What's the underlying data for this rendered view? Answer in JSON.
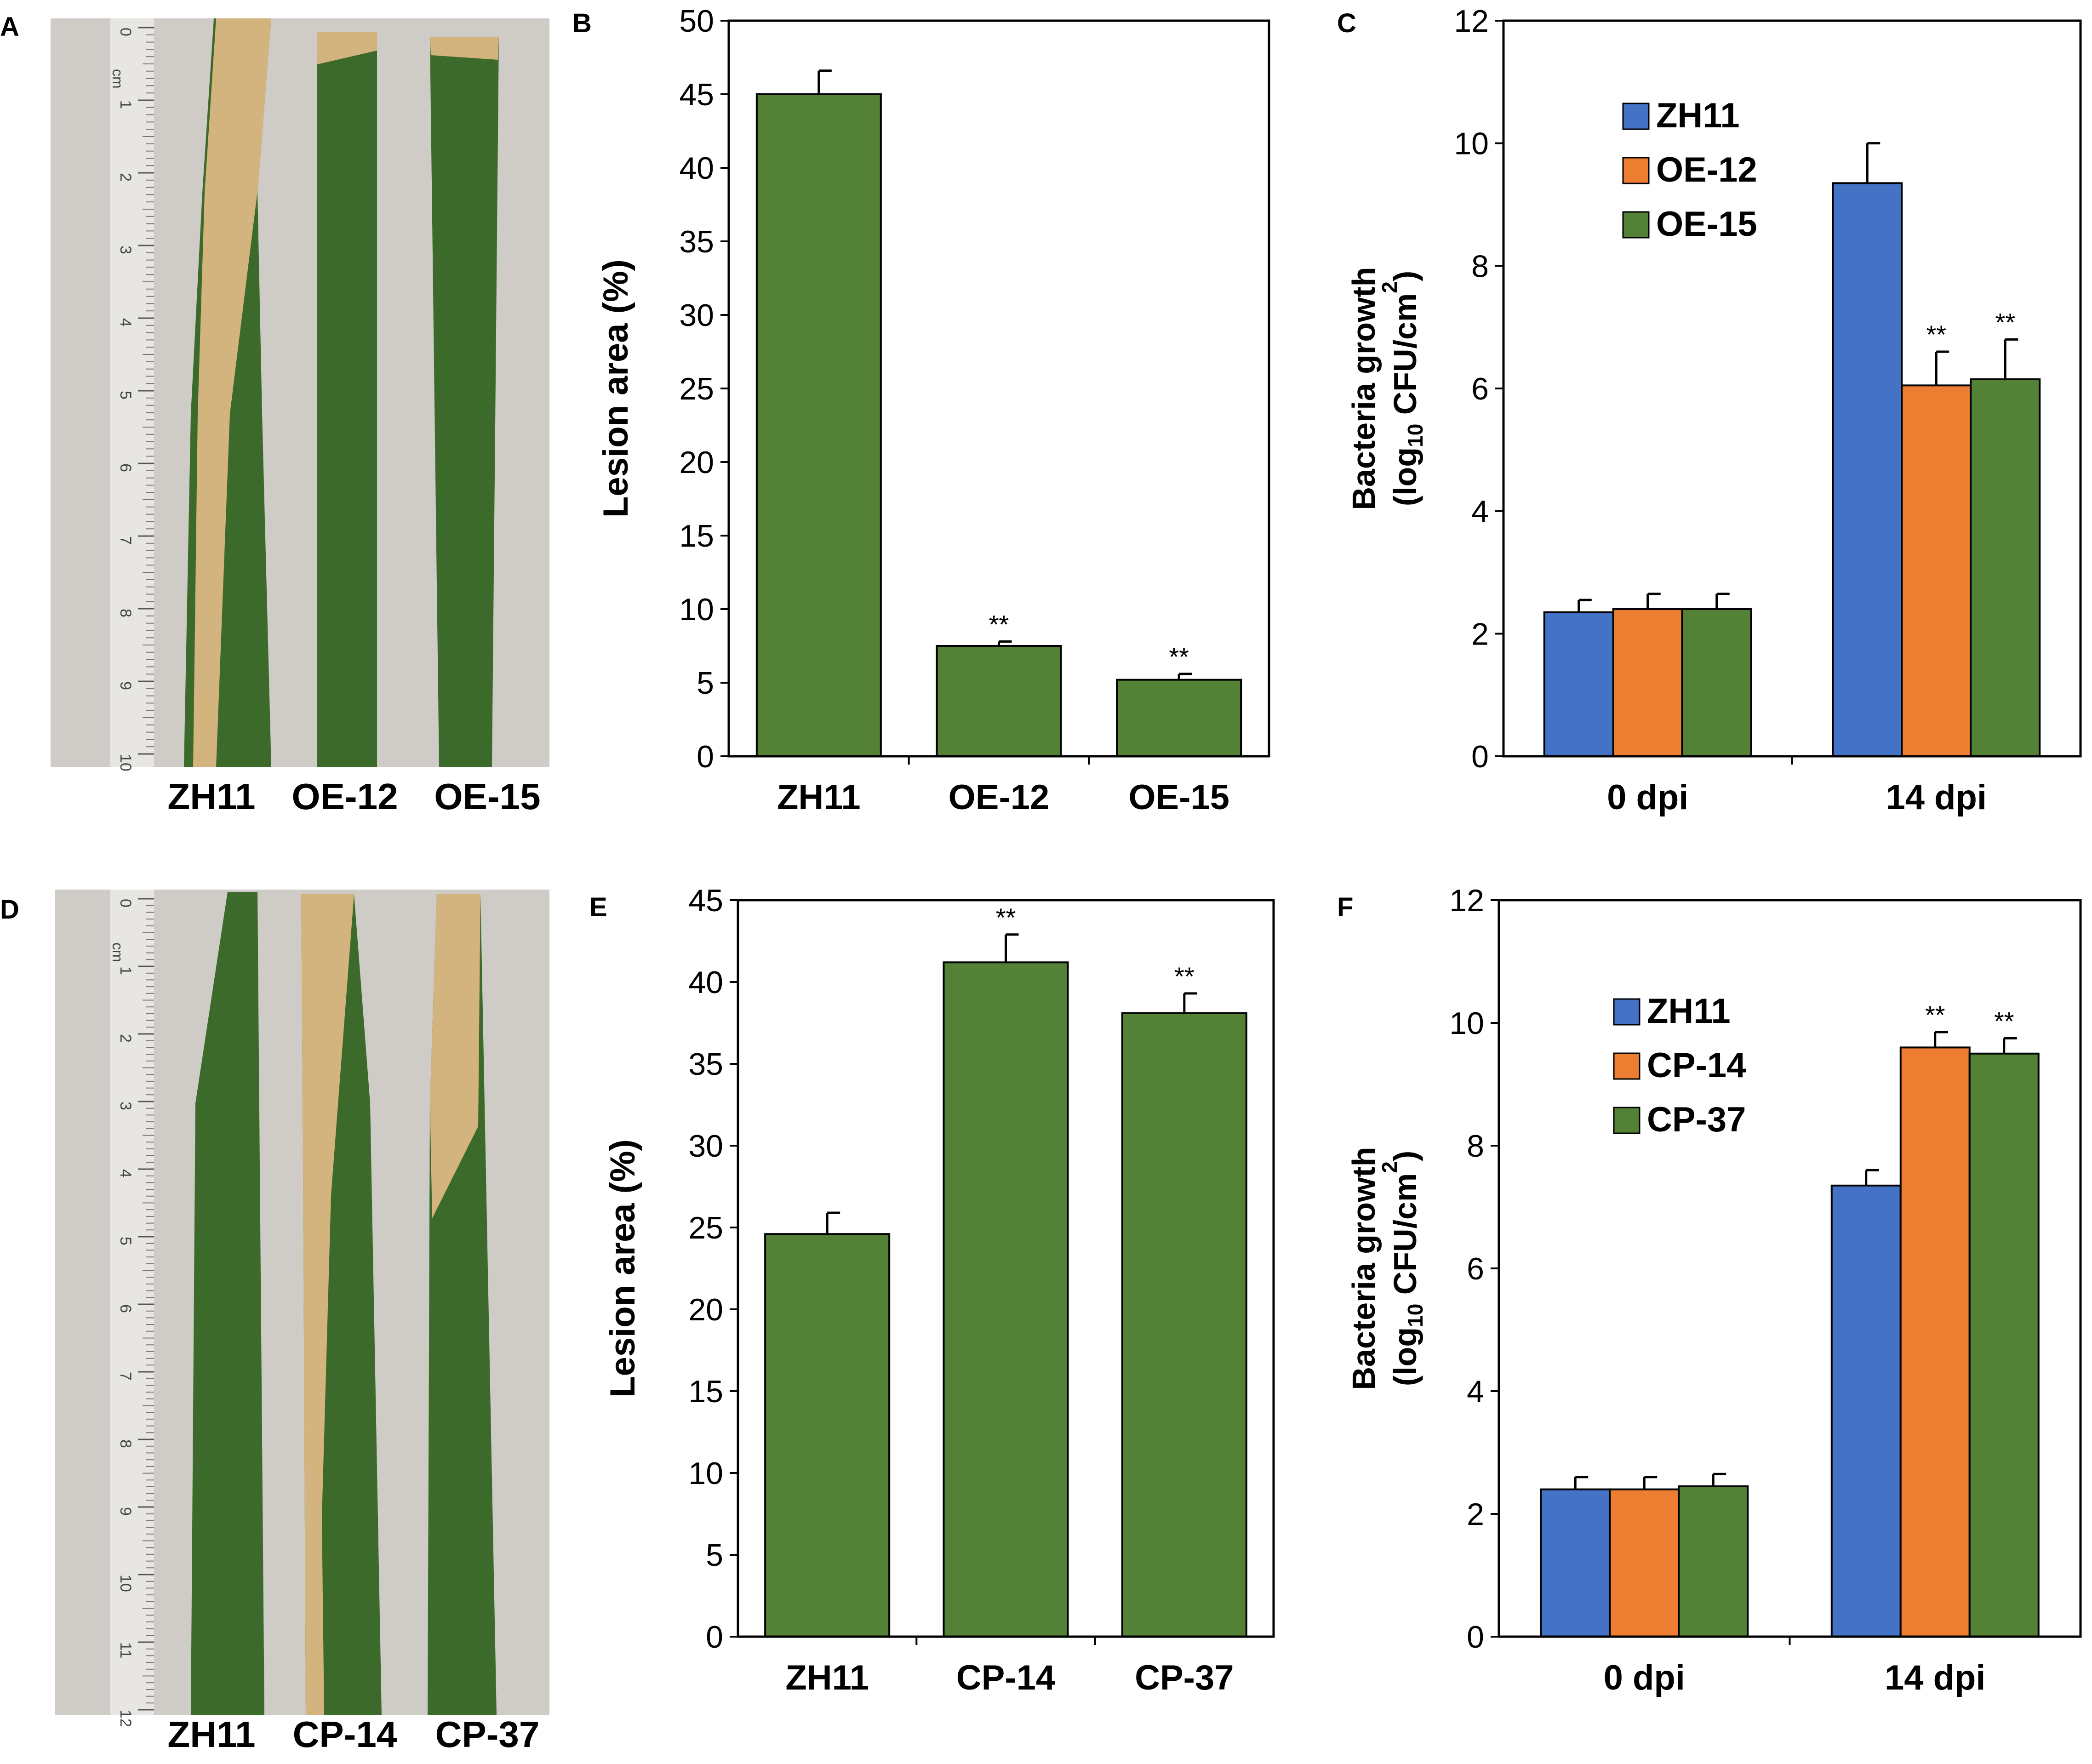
{
  "colors": {
    "green_bar": "#538135",
    "blue_bar": "#4472C4",
    "orange_bar": "#ED7D31",
    "bar_edge": "#000000",
    "photo_background": "#CFCBC7",
    "ruler": "#E8E6E2",
    "leaf_green": "#3B6A2A",
    "lesion_tan": "#D3B37E"
  },
  "panel_labels": [
    "A",
    "B",
    "C",
    "D",
    "E",
    "F"
  ],
  "photos": [
    {
      "label": "A",
      "ruler_unit": "cm",
      "ruler_ticks": [
        "0",
        "1",
        "2",
        "3",
        "4",
        "5",
        "6",
        "7",
        "8",
        "9",
        "10"
      ],
      "leaf_labels": [
        "ZH11",
        "OE-12",
        "OE-15"
      ]
    },
    {
      "label": "D",
      "ruler_unit": "cm",
      "ruler_ticks": [
        "0",
        "1",
        "2",
        "3",
        "4",
        "5",
        "6",
        "7",
        "8",
        "9",
        "10",
        "11",
        "12"
      ],
      "leaf_labels": [
        "ZH11",
        "CP-14",
        "CP-37"
      ]
    }
  ],
  "chart_data": [
    {
      "panel": "B",
      "type": "bar",
      "ylabel": "Lesion area (%)",
      "categories": [
        "ZH11",
        "OE-12",
        "OE-15"
      ],
      "series": [
        {
          "name": "Lesion area",
          "values": [
            45.0,
            7.5,
            5.2
          ],
          "errors": [
            1.6,
            0.3,
            0.4
          ]
        }
      ],
      "significance": [
        "",
        "**",
        "**"
      ],
      "ylim": [
        0,
        50
      ],
      "yticks": [
        "0",
        "5",
        "10",
        "15",
        "20",
        "25",
        "30",
        "35",
        "40",
        "45",
        "50"
      ],
      "grid": false
    },
    {
      "panel": "C",
      "type": "bar",
      "ylabel_line1": "Bacteria growth",
      "ylabel_line2_prefix": "(log",
      "ylabel_line2_sub": "10",
      "ylabel_line2_mid": " CFU/cm",
      "ylabel_line2_sup": "2",
      "ylabel_line2_suffix": ")",
      "categories": [
        "0 dpi",
        "14 dpi"
      ],
      "series": [
        {
          "name": "ZH11",
          "values": [
            2.35,
            9.35
          ],
          "errors": [
            0.2,
            0.65
          ],
          "significance": [
            "",
            ""
          ]
        },
        {
          "name": "OE-12",
          "values": [
            2.4,
            6.05
          ],
          "errors": [
            0.25,
            0.55
          ],
          "significance": [
            "",
            "**"
          ]
        },
        {
          "name": "OE-15",
          "values": [
            2.4,
            6.15
          ],
          "errors": [
            0.25,
            0.65
          ],
          "significance": [
            "",
            "**"
          ]
        }
      ],
      "ylim": [
        0,
        12
      ],
      "yticks": [
        "0",
        "2",
        "4",
        "6",
        "8",
        "10",
        "12"
      ],
      "legend_position": "top-left",
      "grid": false
    },
    {
      "panel": "E",
      "type": "bar",
      "ylabel": "Lesion area (%)",
      "categories": [
        "ZH11",
        "CP-14",
        "CP-37"
      ],
      "series": [
        {
          "name": "Lesion area",
          "values": [
            24.6,
            41.2,
            38.1
          ],
          "errors": [
            1.3,
            1.7,
            1.2
          ]
        }
      ],
      "significance": [
        "",
        "**",
        "**"
      ],
      "ylim": [
        0,
        45
      ],
      "yticks": [
        "0",
        "5",
        "10",
        "15",
        "20",
        "25",
        "30",
        "35",
        "40",
        "45"
      ],
      "grid": false
    },
    {
      "panel": "F",
      "type": "bar",
      "ylabel_line1": "Bacteria growth",
      "ylabel_line2_prefix": "(log",
      "ylabel_line2_sub": "10",
      "ylabel_line2_mid": " CFU/cm",
      "ylabel_line2_sup": "2",
      "ylabel_line2_suffix": ")",
      "categories": [
        "0 dpi",
        "14 dpi"
      ],
      "series": [
        {
          "name": "ZH11",
          "values": [
            2.4,
            7.35
          ],
          "errors": [
            0.2,
            0.25
          ],
          "significance": [
            "",
            ""
          ]
        },
        {
          "name": "CP-14",
          "values": [
            2.4,
            9.6
          ],
          "errors": [
            0.2,
            0.25
          ],
          "significance": [
            "",
            "**"
          ]
        },
        {
          "name": "CP-37",
          "values": [
            2.45,
            9.5
          ],
          "errors": [
            0.2,
            0.25
          ],
          "significance": [
            "",
            "**"
          ]
        }
      ],
      "ylim": [
        0,
        12
      ],
      "yticks": [
        "0",
        "2",
        "4",
        "6",
        "8",
        "10",
        "12"
      ],
      "legend_position": "top-left",
      "grid": false
    }
  ]
}
